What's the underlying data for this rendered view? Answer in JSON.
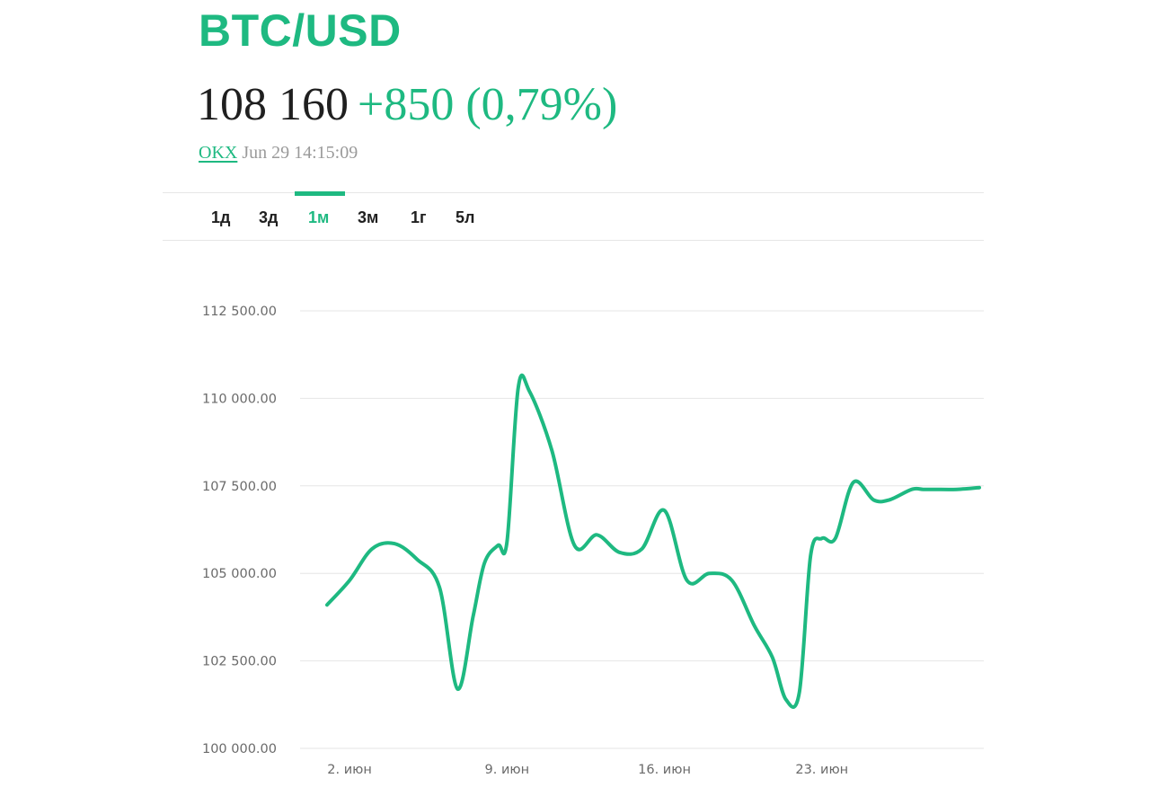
{
  "header": {
    "symbol": "BTC/USD",
    "price": "108 160",
    "change": "+850 (0,79%)",
    "exchange": "OKX",
    "timestamp": "Jun 29 14:15:09"
  },
  "colors": {
    "accent": "#1eb981",
    "text": "#1f1f1f",
    "muted": "#9a9a9a",
    "grid": "#e6e6e6"
  },
  "tabs": {
    "items": [
      "1д",
      "3д",
      "1м",
      "3м",
      "1г",
      "5л"
    ],
    "active": "1м"
  },
  "chart_data": {
    "type": "line",
    "title": "",
    "xlabel": "",
    "ylabel": "",
    "ylim": [
      100000,
      112500
    ],
    "yticks": [
      112500,
      110000,
      107500,
      105000,
      102500,
      100000
    ],
    "ytick_labels": [
      "112 500.00",
      "110 000.00",
      "107 500.00",
      "105 000.00",
      "102 500.00",
      "100 000.00"
    ],
    "xlim": [
      -1.2,
      29.2
    ],
    "xticks": [
      1,
      8,
      15,
      22
    ],
    "xtick_labels": [
      "2. июн",
      "9. июн",
      "16. июн",
      "23. июн"
    ],
    "grid": true,
    "legend": "none",
    "series": [
      {
        "x": [
          0,
          1,
          2,
          3,
          4,
          5,
          5.8,
          6.5,
          7,
          7.6,
          8,
          8.5,
          9,
          10,
          11,
          12,
          13,
          14,
          15,
          16,
          17,
          18,
          19,
          19.8,
          20.4,
          21,
          21.5,
          22,
          22.6,
          23.4,
          24.3,
          25,
          26,
          26.5,
          27,
          28,
          29
        ],
        "y": [
          104100,
          104800,
          105700,
          105850,
          105400,
          104600,
          101700,
          103800,
          105300,
          105800,
          105900,
          110300,
          110200,
          108500,
          105800,
          106100,
          105600,
          105700,
          106800,
          104800,
          105000,
          104800,
          103500,
          102600,
          101400,
          101600,
          105500,
          106000,
          106000,
          107600,
          107100,
          107100,
          107400,
          107400,
          107400,
          107400,
          107450
        ]
      }
    ]
  }
}
